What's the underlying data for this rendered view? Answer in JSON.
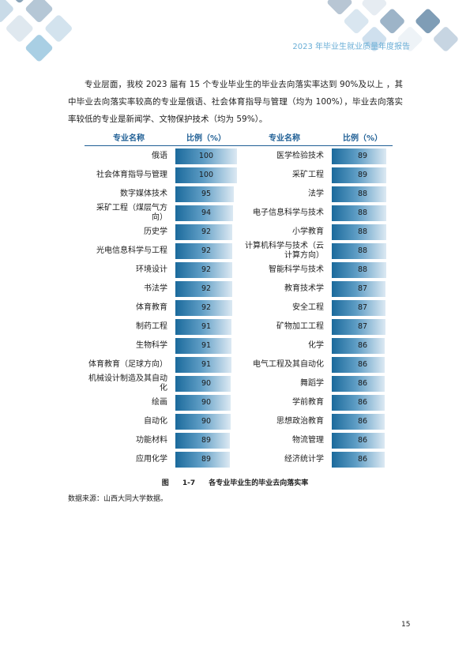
{
  "header": {
    "title": "2023 年毕业生就业质量年度报告"
  },
  "paragraph": "专业层面，我校 2023 届有 15 个专业毕业生的毕业去向落实率达到 90%及以上 ，其中毕业去向落实率较高的专业是俄语、社会体育指导与管理（均为 100%），毕业去向落实率较低的专业是新闻学、文物保护技术（均为 59%）。",
  "table": {
    "headers": [
      "专业名称",
      "比例（%）",
      "专业名称",
      "比例（%）"
    ],
    "left_rows": [
      {
        "name": "俄语",
        "value": 100
      },
      {
        "name": "社会体育指导与管理",
        "value": 100
      },
      {
        "name": "数字媒体技术",
        "value": 95
      },
      {
        "name": "采矿工程（煤层气方向）",
        "value": 94
      },
      {
        "name": "历史学",
        "value": 92
      },
      {
        "name": "光电信息科学与工程",
        "value": 92
      },
      {
        "name": "环境设计",
        "value": 92
      },
      {
        "name": "书法学",
        "value": 92
      },
      {
        "name": "体育教育",
        "value": 92
      },
      {
        "name": "制药工程",
        "value": 91
      },
      {
        "name": "生物科学",
        "value": 91
      },
      {
        "name": "体育教育（足球方向）",
        "value": 91
      },
      {
        "name": "机械设计制造及其自动化",
        "value": 90
      },
      {
        "name": "绘画",
        "value": 90
      },
      {
        "name": "自动化",
        "value": 90
      },
      {
        "name": "功能材料",
        "value": 89
      },
      {
        "name": "应用化学",
        "value": 89
      }
    ],
    "right_rows": [
      {
        "name": "医学检验技术",
        "value": 89
      },
      {
        "name": "采矿工程",
        "value": 89
      },
      {
        "name": "法学",
        "value": 88
      },
      {
        "name": "电子信息科学与技术",
        "value": 88
      },
      {
        "name": "小学教育",
        "value": 88
      },
      {
        "name": "计算机科学与技术（云计算方向）",
        "value": 88
      },
      {
        "name": "智能科学与技术",
        "value": 88
      },
      {
        "name": "教育技术学",
        "value": 87
      },
      {
        "name": "安全工程",
        "value": 87
      },
      {
        "name": "矿物加工工程",
        "value": 87
      },
      {
        "name": "化学",
        "value": 86
      },
      {
        "name": "电气工程及其自动化",
        "value": 86
      },
      {
        "name": "舞蹈学",
        "value": 86
      },
      {
        "name": "学前教育",
        "value": 86
      },
      {
        "name": "思想政治教育",
        "value": 86
      },
      {
        "name": "物流管理",
        "value": 86
      },
      {
        "name": "经济统计学",
        "value": 86
      }
    ]
  },
  "caption": "图 1-7 各专业毕业生的毕业去向落实率",
  "source": "数据来源：山西大同大学数据。",
  "page_number": "15"
}
